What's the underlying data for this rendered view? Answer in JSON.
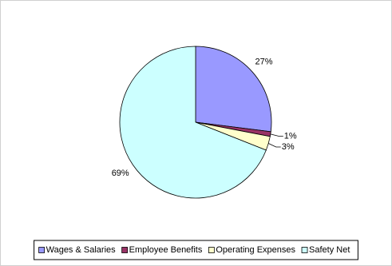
{
  "chart_data": {
    "type": "pie",
    "categories": [
      "Wages & Salaries",
      "Employee Benefits",
      "Operating Expenses",
      "Safety Net"
    ],
    "values": [
      27,
      1,
      3,
      69
    ],
    "value_labels": [
      "27%",
      "1%",
      "3%",
      "69%"
    ],
    "colors": [
      "#9999ff",
      "#993366",
      "#ffffcc",
      "#ccffff"
    ],
    "legend": "bottom"
  }
}
